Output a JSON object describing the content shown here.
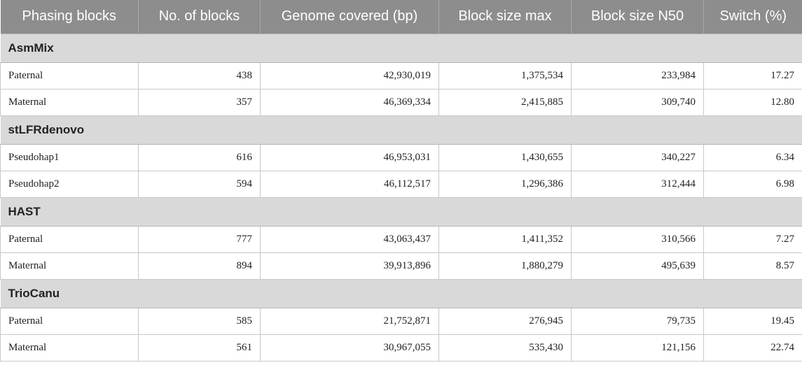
{
  "table": {
    "headers": [
      "Phasing blocks",
      "No. of blocks",
      "Genome covered (bp)",
      "Block size max",
      "Block size N50",
      "Switch (%)"
    ],
    "groups": [
      {
        "name": "AsmMix",
        "rows": [
          [
            "Paternal",
            "438",
            "42,930,019",
            "1,375,534",
            "233,984",
            "17.27"
          ],
          [
            "Maternal",
            "357",
            "46,369,334",
            "2,415,885",
            "309,740",
            "12.80"
          ]
        ]
      },
      {
        "name": "stLFRdenovo",
        "rows": [
          [
            "Pseudohap1",
            "616",
            "46,953,031",
            "1,430,655",
            "340,227",
            "6.34"
          ],
          [
            "Pseudohap2",
            "594",
            "46,112,517",
            "1,296,386",
            "312,444",
            "6.98"
          ]
        ]
      },
      {
        "name": "HAST",
        "rows": [
          [
            "Paternal",
            "777",
            "43,063,437",
            "1,411,352",
            "310,566",
            "7.27"
          ],
          [
            "Maternal",
            "894",
            "39,913,896",
            "1,880,279",
            "495,639",
            "8.57"
          ]
        ]
      },
      {
        "name": "TrioCanu",
        "rows": [
          [
            "Paternal",
            "585",
            "21,752,871",
            "276,945",
            "79,735",
            "19.45"
          ],
          [
            "Maternal",
            "561",
            "30,967,055",
            "535,430",
            "121,156",
            "22.74"
          ]
        ]
      }
    ]
  }
}
